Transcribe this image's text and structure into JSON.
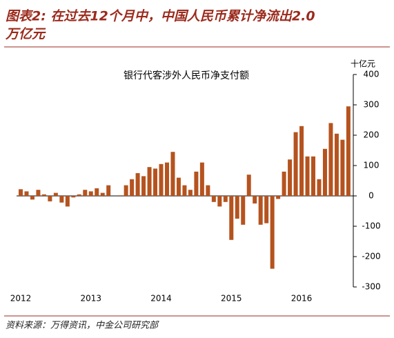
{
  "chart_data": {
    "type": "bar",
    "title_lines": [
      "图表2: 在过去12个月中，中国人民币累计净流出2.0",
      "万亿元"
    ],
    "chart_title": "银行代客涉外人民币净支付额",
    "y_unit": "十亿元",
    "source": "资料来源：万得资讯，中金公司研究部",
    "categories": [
      "2012",
      null,
      null,
      null,
      null,
      null,
      null,
      null,
      null,
      null,
      null,
      null,
      "2013",
      null,
      null,
      null,
      null,
      null,
      null,
      null,
      null,
      null,
      null,
      null,
      "2014",
      null,
      null,
      null,
      null,
      null,
      null,
      null,
      null,
      null,
      null,
      null,
      "2015",
      null,
      null,
      null,
      null,
      null,
      null,
      null,
      null,
      null,
      null,
      null,
      "2016",
      null,
      null,
      null,
      null,
      null,
      null,
      null,
      null
    ],
    "values": [
      22,
      15,
      -12,
      20,
      5,
      -18,
      10,
      -22,
      -35,
      -5,
      5,
      20,
      15,
      25,
      10,
      35,
      0,
      2,
      35,
      55,
      75,
      65,
      95,
      90,
      105,
      110,
      145,
      60,
      35,
      20,
      80,
      110,
      35,
      -20,
      -35,
      -20,
      -145,
      -75,
      -95,
      70,
      -25,
      -95,
      -90,
      -240,
      -10,
      80,
      120,
      210,
      230,
      130,
      130,
      55,
      155,
      240,
      205,
      185,
      295
    ],
    "color": "#b5531f",
    "ylim": [
      -300,
      400
    ],
    "yticks": [
      -300,
      -200,
      -100,
      0,
      100,
      200,
      300,
      400
    ]
  }
}
